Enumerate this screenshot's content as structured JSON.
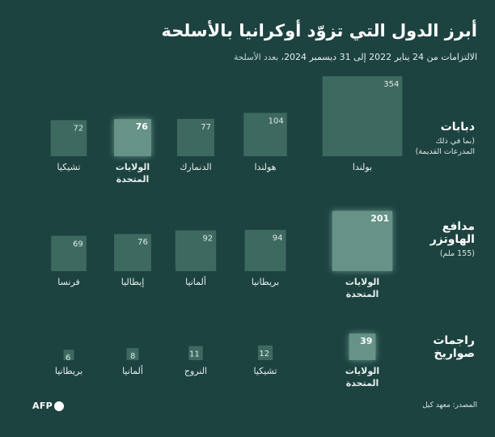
{
  "title": "أبرز الدول التي تزوّد أوكرانيا بالأسلحة",
  "subtitle": {
    "main": "الالتزامات من 24 يناير 2022 إلى 31 ديسمبر 2024،",
    "rest": " بعدد الأسلحة"
  },
  "source": "المصدر: معهد كيل",
  "logo_text": "AFP",
  "colors": {
    "background": "#1d4340",
    "square": "#3f6c63",
    "highlight": "#6a978b"
  },
  "chart_data": {
    "type": "proportional-squares",
    "title": "أبرز الدول التي تزوّد أوكرانيا بالأسلحة",
    "unit": "عدد الأسلحة",
    "rows": [
      {
        "category_lines": [
          "دبابات"
        ],
        "category_note_lines": [
          "(بما في ذلك",
          "المدرعات القديمة)"
        ],
        "items": [
          {
            "country": "بولندا",
            "value": 354,
            "highlight": false
          },
          {
            "country": "هولندا",
            "value": 104,
            "highlight": false
          },
          {
            "country": "الدنمارك",
            "value": 77,
            "highlight": false
          },
          {
            "country": "الولايات المتحدة",
            "value": 76,
            "highlight": true
          },
          {
            "country": "تشيكيا",
            "value": 72,
            "highlight": false
          }
        ]
      },
      {
        "category_lines": [
          "مدافع",
          "الهاوتزر"
        ],
        "category_note_lines": [
          "(155 ملم)"
        ],
        "items": [
          {
            "country": "الولايات المتحدة",
            "value": 201,
            "highlight": true
          },
          {
            "country": "بريطانيا",
            "value": 94,
            "highlight": false
          },
          {
            "country": "ألمانيا",
            "value": 92,
            "highlight": false
          },
          {
            "country": "إيطاليا",
            "value": 76,
            "highlight": false
          },
          {
            "country": "فرنسا",
            "value": 69,
            "highlight": false
          }
        ]
      },
      {
        "category_lines": [
          "راجمات",
          "صواريخ"
        ],
        "category_note_lines": [],
        "items": [
          {
            "country": "الولايات المتحدة",
            "value": 39,
            "highlight": true
          },
          {
            "country": "تشيكيا",
            "value": 12,
            "highlight": false
          },
          {
            "country": "النروج",
            "value": 11,
            "highlight": false
          },
          {
            "country": "ألمانيا",
            "value": 8,
            "highlight": false
          },
          {
            "country": "بريطانيا",
            "value": 6,
            "highlight": false
          }
        ]
      }
    ]
  }
}
